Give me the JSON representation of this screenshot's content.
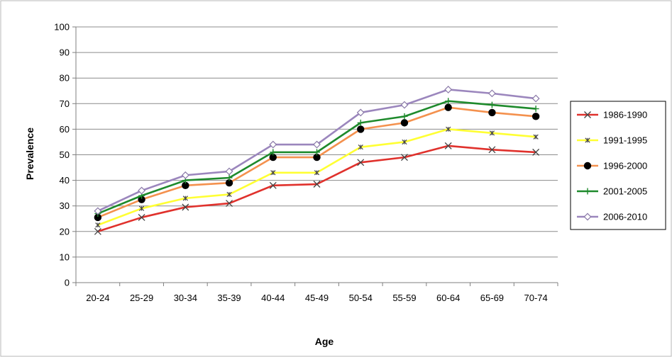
{
  "chart_data": {
    "type": "line",
    "xlabel": "Age",
    "ylabel": "Prevalence",
    "categories": [
      "20-24",
      "25-29",
      "30-34",
      "35-39",
      "40-44",
      "45-49",
      "50-54",
      "55-59",
      "60-64",
      "65-69",
      "70-74"
    ],
    "ylim": [
      0,
      100
    ],
    "yticks": [
      0,
      10,
      20,
      30,
      40,
      50,
      60,
      70,
      80,
      90,
      100
    ],
    "grid": "horizontal",
    "legend_position": "right",
    "series": [
      {
        "name": "1986-1990",
        "color": "#e0312c",
        "marker": "x-icon",
        "values": [
          20,
          25.5,
          29.5,
          31,
          38,
          38.5,
          47,
          49,
          53.5,
          52,
          51
        ]
      },
      {
        "name": "1991-1995",
        "color": "#ffff33",
        "marker": "asterisk-icon",
        "values": [
          22.5,
          29,
          33,
          34.5,
          43,
          43,
          53,
          55,
          60,
          58.5,
          57
        ]
      },
      {
        "name": "1996-2000",
        "color": "#f4914e",
        "marker": "circle-icon",
        "values": [
          25.5,
          32.5,
          38,
          39,
          49,
          49,
          60,
          62.5,
          68.5,
          66.5,
          65
        ]
      },
      {
        "name": "2001-2005",
        "color": "#1e8a2c",
        "marker": "plus-icon",
        "values": [
          27,
          34,
          40,
          41,
          51,
          51,
          62.5,
          65,
          71,
          69.5,
          68
        ]
      },
      {
        "name": "2006-2010",
        "color": "#9b86bd",
        "marker": "diamond-icon",
        "values": [
          28,
          36,
          42,
          43.5,
          54,
          54,
          66.5,
          69.5,
          75.5,
          74,
          72
        ]
      }
    ]
  }
}
